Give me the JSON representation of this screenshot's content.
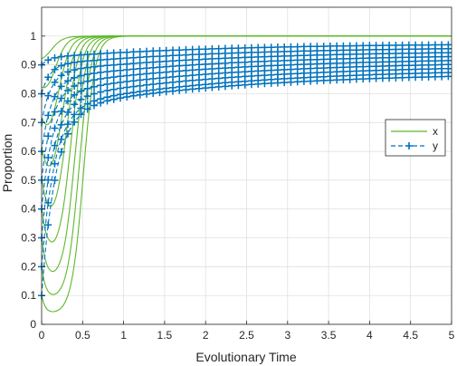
{
  "chart_data": {
    "type": "line",
    "title": "",
    "xlabel": "Evolutionary Time",
    "ylabel": "Proportion",
    "xlim": [
      0,
      5
    ],
    "ylim": [
      0,
      1.1
    ],
    "x_ticks": [
      "0",
      "0.5",
      "1",
      "1.5",
      "2",
      "2.5",
      "3",
      "3.5",
      "4",
      "4.5",
      "5"
    ],
    "y_ticks": [
      "0",
      "0.1",
      "0.2",
      "0.3",
      "0.4",
      "0.5",
      "0.6",
      "0.7",
      "0.8",
      "0.9",
      "1"
    ],
    "grid": true,
    "legend_position": "right-middle",
    "series": [
      {
        "name": "x",
        "color": "#5eb82b",
        "line_style": "solid",
        "marker": "none"
      },
      {
        "name": "y",
        "color": "#0072bd",
        "line_style": "dashed",
        "marker": "+"
      }
    ],
    "x_initial_values": [
      0.1,
      0.2,
      0.3,
      0.4,
      0.5,
      0.6,
      0.7,
      0.8,
      0.9
    ],
    "y_initial_values": [
      0.1,
      0.2,
      0.3,
      0.4,
      0.5,
      0.6,
      0.7,
      0.8,
      0.9
    ],
    "x_final_value": 1.0,
    "y_final_range": [
      0.86,
      0.97
    ]
  }
}
